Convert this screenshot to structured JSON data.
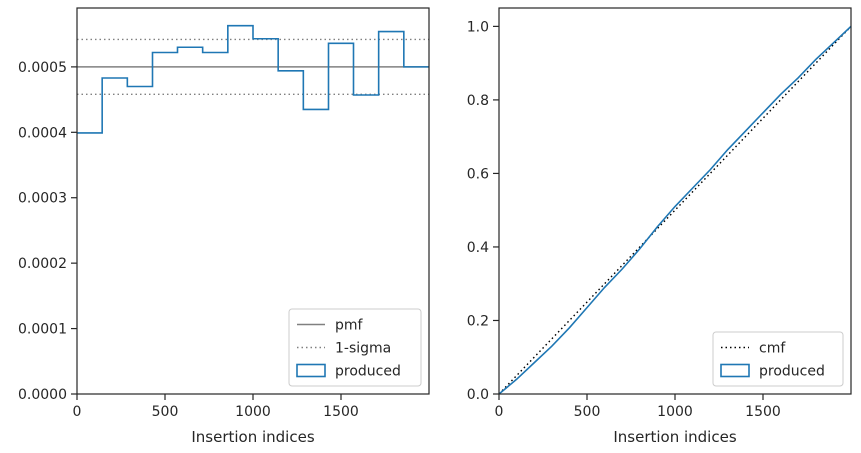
{
  "chart_data": [
    {
      "type": "line",
      "title": "",
      "xlabel": "Insertion indices",
      "ylabel": "",
      "xlim": [
        0,
        2000
      ],
      "ylim": [
        0,
        0.00059
      ],
      "xticks": [
        0,
        500,
        1000,
        1500
      ],
      "xtick_labels": [
        "0",
        "500",
        "1000",
        "1500"
      ],
      "yticks": [
        0,
        0.0001,
        0.0002,
        0.0003,
        0.0004,
        0.0005
      ],
      "ytick_labels": [
        "0.0000",
        "0.0001",
        "0.0002",
        "0.0003",
        "0.0004",
        "0.0005"
      ],
      "grid": false,
      "legend_position": "lower-right",
      "series": [
        {
          "name": "pmf",
          "style": "solid",
          "color": "#808080",
          "x": [
            0,
            2000
          ],
          "y": [
            0.0005,
            0.0005
          ]
        },
        {
          "name": "1-sigma",
          "style": "dotted",
          "color": "#808080",
          "x": [
            0,
            2000
          ],
          "y": [
            0.000542,
            0.000542
          ]
        },
        {
          "name": "",
          "style": "dotted",
          "color": "#808080",
          "x": [
            0,
            2000
          ],
          "y": [
            0.000458,
            0.000458
          ]
        },
        {
          "name": "produced",
          "style": "step",
          "color": "#1f77b4",
          "bin_edges": [
            0,
            143,
            286,
            429,
            571,
            714,
            857,
            1000,
            1143,
            1286,
            1429,
            1571,
            1714,
            1857,
            2000
          ],
          "values": [
            0.000399,
            0.000483,
            0.00047,
            0.000522,
            0.00053,
            0.000522,
            0.000563,
            0.000543,
            0.000494,
            0.000435,
            0.000536,
            0.000457,
            0.000554,
            0.0005
          ]
        }
      ]
    },
    {
      "type": "line",
      "title": "",
      "xlabel": "Insertion indices",
      "ylabel": "",
      "xlim": [
        0,
        2000
      ],
      "ylim": [
        0,
        1.05
      ],
      "xticks": [
        0,
        500,
        1000,
        1500
      ],
      "xtick_labels": [
        "0",
        "500",
        "1000",
        "1500"
      ],
      "yticks": [
        0,
        0.2,
        0.4,
        0.6,
        0.8,
        1.0
      ],
      "ytick_labels": [
        "0.0",
        "0.2",
        "0.4",
        "0.6",
        "0.8",
        "1.0"
      ],
      "grid": false,
      "legend_position": "lower-right",
      "series": [
        {
          "name": "cmf",
          "style": "dotted",
          "color": "#000000",
          "x": [
            0,
            2000
          ],
          "y": [
            0,
            1.0
          ]
        },
        {
          "name": "produced",
          "style": "step",
          "color": "#1f77b4",
          "x": [
            0,
            100,
            200,
            300,
            400,
            500,
            600,
            700,
            800,
            900,
            1000,
            1100,
            1200,
            1300,
            1400,
            1500,
            1600,
            1700,
            1800,
            1900,
            2000
          ],
          "y": [
            0,
            0.04,
            0.085,
            0.13,
            0.18,
            0.235,
            0.29,
            0.34,
            0.395,
            0.455,
            0.51,
            0.56,
            0.61,
            0.665,
            0.715,
            0.765,
            0.815,
            0.86,
            0.91,
            0.955,
            1.0
          ]
        }
      ]
    }
  ]
}
